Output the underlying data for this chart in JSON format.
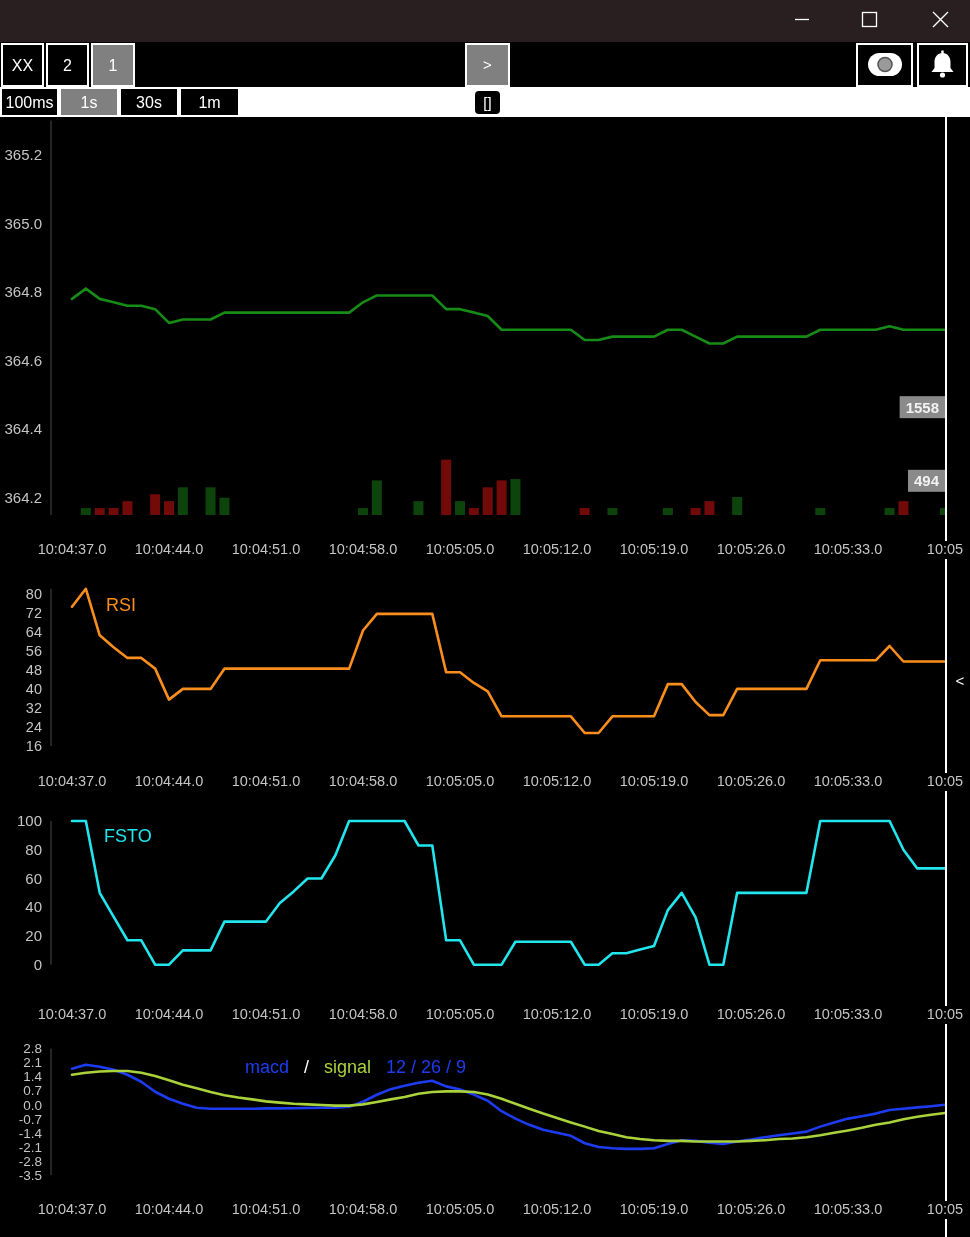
{
  "chart_data": [
    {
      "type": "other",
      "annotations": [
        "XX",
        "2",
        "1",
        ">",
        "100ms",
        "1s",
        "30s",
        "1m",
        "[]",
        "<"
      ]
    },
    {
      "type": "line",
      "categories": [
        "10:04:37.0",
        null,
        null,
        null,
        null,
        null,
        null,
        "10:04:44.0",
        null,
        null,
        null,
        null,
        null,
        null,
        "10:04:51.0",
        null,
        null,
        null,
        null,
        null,
        null,
        "10:04:58.0",
        null,
        null,
        null,
        null,
        null,
        null,
        "10:05:05.0",
        null,
        null,
        null,
        null,
        null,
        null,
        "10:05:12.0",
        null,
        null,
        null,
        null,
        null,
        null,
        "10:05:19.0",
        null,
        null,
        null,
        null,
        null,
        null,
        "10:05:26.0",
        null,
        null,
        null,
        null,
        null,
        null,
        "10:05:33.0",
        null,
        null,
        null,
        null,
        null,
        null,
        "10:05"
      ],
      "ylim": [
        364.15,
        365.3
      ],
      "yticks": [
        364.2,
        364.4,
        364.6,
        364.8,
        {
          "value": 365,
          "label": "365.0"
        },
        365.2
      ],
      "y2lim": [
        0,
        5700
      ],
      "y2ticks": [
        494,
        1558
      ],
      "series": [
        {
          "color": "#168c16",
          "values": [
            364.78,
            364.81,
            364.78,
            364.77,
            364.76,
            364.76,
            364.75,
            364.71,
            364.72,
            364.72,
            364.72,
            364.74,
            364.74,
            364.74,
            364.74,
            364.74,
            364.74,
            364.74,
            364.74,
            364.74,
            364.74,
            364.77,
            364.79,
            364.79,
            364.79,
            364.79,
            364.79,
            364.75,
            364.75,
            364.74,
            364.73,
            364.69,
            364.69,
            364.69,
            364.69,
            364.69,
            364.69,
            364.66,
            364.66,
            364.67,
            364.67,
            364.67,
            364.67,
            364.69,
            364.69,
            364.67,
            364.65,
            364.65,
            364.67,
            364.67,
            364.67,
            364.67,
            364.67,
            364.67,
            364.69,
            364.69,
            364.69,
            364.69,
            364.69,
            364.7,
            364.69,
            364.69,
            364.69,
            364.69
          ]
        },
        {
          "type": "bar",
          "axis": "y2",
          "values": [
            null,
            100,
            100,
            100,
            200,
            null,
            300,
            200,
            400,
            null,
            400,
            250,
            null,
            null,
            null,
            null,
            null,
            null,
            null,
            null,
            null,
            100,
            500,
            null,
            null,
            200,
            null,
            800,
            200,
            100,
            400,
            500,
            520,
            null,
            null,
            null,
            null,
            100,
            null,
            100,
            null,
            null,
            null,
            100,
            null,
            100,
            200,
            null,
            260,
            null,
            null,
            null,
            null,
            null,
            100,
            null,
            null,
            null,
            null,
            100,
            200,
            null,
            null,
            100
          ],
          "colors": [
            null,
            "#0c440c",
            "#730a0a",
            "#730a0a",
            "#730a0a",
            null,
            "#730a0a",
            "#730a0a",
            "#0c440c",
            null,
            "#0c440c",
            "#0c440c",
            null,
            null,
            null,
            null,
            null,
            null,
            null,
            null,
            null,
            "#0c440c",
            "#0c440c",
            null,
            null,
            "#0c440c",
            null,
            "#730a0a",
            "#0c440c",
            "#730a0a",
            "#730a0a",
            "#730a0a",
            "#0c440c",
            null,
            null,
            null,
            null,
            "#730a0a",
            null,
            "#0c440c",
            null,
            null,
            null,
            "#0c440c",
            null,
            "#730a0a",
            "#730a0a",
            null,
            "#0c440c",
            null,
            null,
            null,
            null,
            null,
            "#0c440c",
            null,
            null,
            null,
            null,
            "#0c440c",
            "#730a0a",
            null,
            null,
            "#0c440c"
          ]
        }
      ]
    },
    {
      "type": "line",
      "title": "RSI",
      "categories": [
        "10:04:37.0",
        null,
        null,
        null,
        null,
        null,
        null,
        "10:04:44.0",
        null,
        null,
        null,
        null,
        null,
        null,
        "10:04:51.0",
        null,
        null,
        null,
        null,
        null,
        null,
        "10:04:58.0",
        null,
        null,
        null,
        null,
        null,
        null,
        "10:05:05.0",
        null,
        null,
        null,
        null,
        null,
        null,
        "10:05:12.0",
        null,
        null,
        null,
        null,
        null,
        null,
        "10:05:19.0",
        null,
        null,
        null,
        null,
        null,
        null,
        "10:05:26.0",
        null,
        null,
        null,
        null,
        null,
        null,
        "10:05:33.0",
        null,
        null,
        null,
        null,
        null,
        null,
        "10:05"
      ],
      "ylim": [
        16,
        82
      ],
      "yticks": [
        80,
        72,
        64,
        56,
        48,
        40,
        32,
        24,
        16
      ],
      "series": [
        {
          "color": "#f98e1d",
          "values": [
            74.5,
            82,
            62.5,
            57.5,
            53,
            53,
            48.5,
            35.5,
            40,
            40,
            40,
            48.5,
            48.5,
            48.5,
            48.5,
            48.5,
            48.5,
            48.5,
            48.5,
            48.5,
            48.5,
            64.5,
            71.5,
            71.5,
            71.5,
            71.5,
            71.5,
            47,
            47,
            42.5,
            39,
            28.5,
            28.5,
            28.5,
            28.5,
            28.5,
            28.5,
            21.5,
            21.5,
            28.5,
            28.5,
            28.5,
            28.5,
            42,
            42,
            34.5,
            29,
            29,
            40,
            40,
            40,
            40,
            40,
            40,
            52,
            52,
            52,
            52,
            52,
            58,
            51.5,
            51.5,
            51.5,
            51.5
          ]
        }
      ]
    },
    {
      "type": "line",
      "title": "FSTO",
      "categories": [
        "10:04:37.0",
        null,
        null,
        null,
        null,
        null,
        null,
        "10:04:44.0",
        null,
        null,
        null,
        null,
        null,
        null,
        "10:04:51.0",
        null,
        null,
        null,
        null,
        null,
        null,
        "10:04:58.0",
        null,
        null,
        null,
        null,
        null,
        null,
        "10:05:05.0",
        null,
        null,
        null,
        null,
        null,
        null,
        "10:05:12.0",
        null,
        null,
        null,
        null,
        null,
        null,
        "10:05:19.0",
        null,
        null,
        null,
        null,
        null,
        null,
        "10:05:26.0",
        null,
        null,
        null,
        null,
        null,
        null,
        "10:05:33.0",
        null,
        null,
        null,
        null,
        null,
        null,
        "10:05"
      ],
      "ylim": [
        0,
        100
      ],
      "yticks": [
        100,
        80,
        60,
        40,
        20,
        0
      ],
      "series": [
        {
          "color": "#22e6ee",
          "values": [
            100,
            100,
            50,
            33.5,
            17,
            17,
            0,
            0,
            10,
            10,
            10,
            30,
            30,
            30,
            30,
            43,
            51,
            60,
            60,
            76,
            100,
            100,
            100,
            100,
            100,
            83,
            83,
            17,
            17,
            0,
            0,
            0,
            16,
            16,
            16,
            16,
            16,
            0,
            0,
            8,
            8,
            10.5,
            13,
            38,
            50,
            33,
            0,
            0,
            50,
            50,
            50,
            50,
            50,
            50,
            100,
            100,
            100,
            100,
            100,
            100,
            80,
            67,
            67,
            67
          ]
        }
      ]
    },
    {
      "type": "line",
      "legend": "top left",
      "annotations": [
        "/",
        "12 / 26 / 9"
      ],
      "categories": [
        "10:04:37.0",
        null,
        null,
        null,
        null,
        null,
        null,
        "10:04:44.0",
        null,
        null,
        null,
        null,
        null,
        null,
        "10:04:51.0",
        null,
        null,
        null,
        null,
        null,
        null,
        "10:04:58.0",
        null,
        null,
        null,
        null,
        null,
        null,
        "10:05:05.0",
        null,
        null,
        null,
        null,
        null,
        null,
        "10:05:12.0",
        null,
        null,
        null,
        null,
        null,
        null,
        "10:05:19.0",
        null,
        null,
        null,
        null,
        null,
        null,
        "10:05:26.0",
        null,
        null,
        null,
        null,
        null,
        null,
        "10:05:33.0",
        null,
        null,
        null,
        null,
        null,
        null,
        "10:05"
      ],
      "ylim": [
        -3.5,
        2.8
      ],
      "yticks": [
        2.8,
        2.1,
        1.4,
        0.7,
        {
          "value": 0,
          "label": "0.0"
        },
        -0.7,
        -1.4,
        -2.1,
        -2.8,
        -3.5
      ],
      "series": [
        {
          "name": "macd",
          "color": "#1d3cf2",
          "values": [
            1.8,
            2.0,
            1.9,
            1.75,
            1.5,
            1.15,
            0.65,
            0.3,
            0.05,
            -0.15,
            -0.2,
            -0.2,
            -0.2,
            -0.2,
            -0.18,
            -0.18,
            -0.17,
            -0.16,
            -0.15,
            -0.15,
            -0.1,
            0.15,
            0.5,
            0.78,
            0.95,
            1.1,
            1.2,
            0.92,
            0.76,
            0.51,
            0.2,
            -0.32,
            -0.69,
            -1.0,
            -1.25,
            -1.4,
            -1.55,
            -1.92,
            -2.11,
            -2.17,
            -2.2,
            -2.2,
            -2.17,
            -1.96,
            -1.77,
            -1.8,
            -1.89,
            -1.96,
            -1.83,
            -1.74,
            -1.62,
            -1.52,
            -1.43,
            -1.34,
            -1.09,
            -0.88,
            -0.69,
            -0.57,
            -0.44,
            -0.26,
            -0.2,
            -0.13,
            -0.07,
            0.0
          ]
        },
        {
          "name": "signal",
          "color": "#a9d23b",
          "values": [
            1.5,
            1.6,
            1.66,
            1.69,
            1.69,
            1.6,
            1.44,
            1.23,
            1.0,
            0.82,
            0.64,
            0.48,
            0.36,
            0.27,
            0.17,
            0.11,
            0.05,
            0.02,
            -0.01,
            -0.04,
            -0.04,
            0.02,
            0.14,
            0.27,
            0.39,
            0.55,
            0.64,
            0.67,
            0.67,
            0.64,
            0.51,
            0.3,
            0.05,
            -0.2,
            -0.44,
            -0.66,
            -0.88,
            -1.09,
            -1.31,
            -1.46,
            -1.62,
            -1.71,
            -1.77,
            -1.8,
            -1.8,
            -1.83,
            -1.83,
            -1.83,
            -1.83,
            -1.8,
            -1.77,
            -1.71,
            -1.68,
            -1.62,
            -1.52,
            -1.4,
            -1.28,
            -1.15,
            -1.0,
            -0.88,
            -0.72,
            -0.6,
            -0.5,
            -0.41
          ]
        }
      ]
    }
  ]
}
